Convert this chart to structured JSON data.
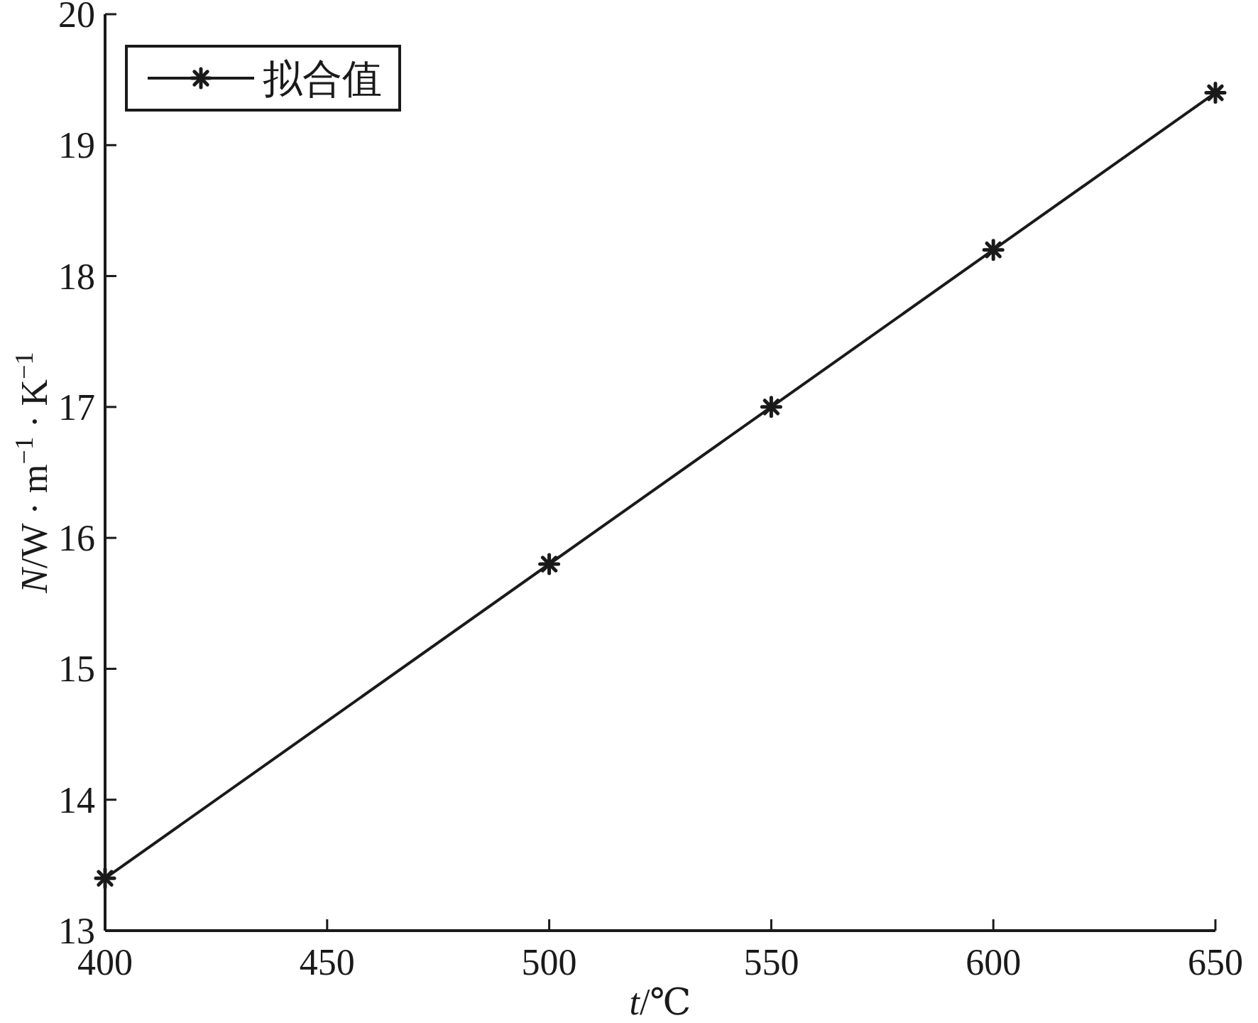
{
  "chart_data": {
    "type": "line",
    "xlabel": "t/℃",
    "ylabel": "N/W · m$^{−1}$ · K$^{−1}$",
    "x": [
      400,
      500,
      550,
      600,
      650
    ],
    "series": [
      {
        "name": "拟合值",
        "color": "#1a1a1a",
        "values": [
          13.4,
          15.8,
          17.0,
          18.2,
          19.4
        ]
      }
    ],
    "xlim": [
      400,
      650
    ],
    "xticks": [
      400,
      450,
      500,
      550,
      600,
      650
    ],
    "ylim": [
      13,
      20
    ],
    "yticks": [
      13,
      14,
      15,
      16,
      17,
      18,
      19,
      20
    ],
    "legend": "top left",
    "marker": "cross",
    "line_style": "solid"
  }
}
